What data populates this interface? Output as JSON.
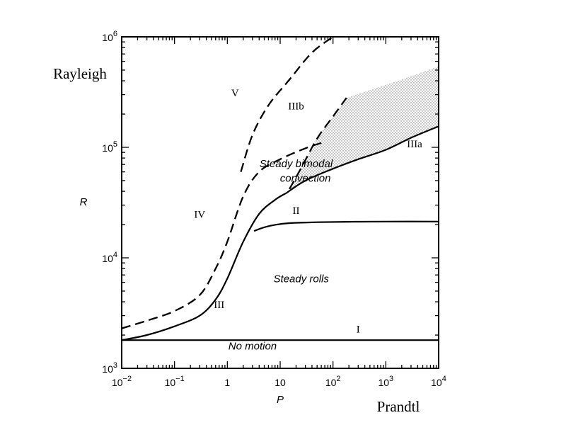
{
  "chart_data": {
    "type": "line",
    "title": "",
    "xlabel": "P",
    "ylabel": "R",
    "xlabel_word": "Prandtl",
    "ylabel_word": "Rayleigh",
    "xscale": "log",
    "yscale": "log",
    "xlim": [
      0.01,
      10000
    ],
    "ylim": [
      1000,
      1000000
    ],
    "grid": false,
    "x_ticks": [
      0.01,
      0.1,
      1,
      10,
      100,
      1000,
      10000
    ],
    "x_tick_labels": [
      {
        "base": "10",
        "exp": "−2"
      },
      {
        "base": "10",
        "exp": "−1"
      },
      {
        "base": "1",
        "exp": ""
      },
      {
        "base": "10",
        "exp": ""
      },
      {
        "base": "10",
        "exp": "2"
      },
      {
        "base": "10",
        "exp": "3"
      },
      {
        "base": "10",
        "exp": "4"
      }
    ],
    "y_ticks": [
      1000,
      10000,
      100000,
      1000000
    ],
    "y_tick_labels": [
      {
        "base": "10",
        "exp": "3"
      },
      {
        "base": "10",
        "exp": "4"
      },
      {
        "base": "10",
        "exp": "5"
      },
      {
        "base": "10",
        "exp": "6"
      }
    ],
    "series": [
      {
        "name": "I",
        "style": "solid",
        "x": [
          0.01,
          10000
        ],
        "y": [
          1800,
          1800
        ]
      },
      {
        "name": "II",
        "style": "solid",
        "x": [
          3.2,
          5,
          8,
          15,
          50,
          200,
          1000,
          10000
        ],
        "y": [
          17500,
          18900,
          19900,
          20600,
          21000,
          21200,
          21300,
          21300
        ]
      },
      {
        "name": "III",
        "style": "solid",
        "x": [
          0.01,
          0.03,
          0.1,
          0.3,
          0.6,
          1,
          2,
          4,
          8,
          13
        ],
        "y": [
          1800,
          2000,
          2400,
          3000,
          4200,
          6500,
          14000,
          25000,
          33500,
          38500
        ]
      },
      {
        "name": "IIIa",
        "style": "solid",
        "x": [
          13,
          30,
          100,
          300,
          1000,
          3000,
          10000
        ],
        "y": [
          38500,
          50000,
          64000,
          78000,
          95000,
          122000,
          155000
        ]
      },
      {
        "name": "IV",
        "style": "dashed",
        "x": [
          0.01,
          0.03,
          0.1,
          0.3,
          0.6,
          1,
          2,
          4,
          10,
          30,
          70
        ],
        "y": [
          2300,
          2700,
          3300,
          4600,
          8000,
          14000,
          36000,
          60000,
          78000,
          98000,
          112000
        ]
      },
      {
        "name": "IIIb",
        "style": "dashed",
        "x": [
          15,
          25,
          50,
          100,
          180
        ],
        "y": [
          42000,
          65000,
          120000,
          190000,
          280000
        ]
      },
      {
        "name": "V",
        "style": "dashed",
        "x": [
          1.8,
          3,
          6,
          15,
          40,
          100
        ],
        "y": [
          60000,
          130000,
          240000,
          410000,
          720000,
          1000000
        ]
      }
    ],
    "shaded_region": {
      "label": "Steady bimodal convection",
      "upper": {
        "x": [
          180,
          500,
          2000,
          10000
        ],
        "y": [
          280000,
          330000,
          410000,
          540000
        ]
      }
    },
    "annotations": [
      {
        "text": "I",
        "style": "roman",
        "x": 300,
        "y": 2100
      },
      {
        "text": "II",
        "style": "roman",
        "x": 20,
        "y": 25000
      },
      {
        "text": "III",
        "style": "roman",
        "x": 0.7,
        "y": 3500
      },
      {
        "text": "IIIa",
        "style": "roman",
        "x": 3500,
        "y": 100000
      },
      {
        "text": "IIIb",
        "style": "roman",
        "x": 20,
        "y": 220000
      },
      {
        "text": "IV",
        "style": "roman",
        "x": 0.3,
        "y": 23000
      },
      {
        "text": "V",
        "style": "roman",
        "x": 1.4,
        "y": 290000
      },
      {
        "text": "Steady bimodal",
        "style": "italic",
        "x": 20,
        "y": 66000
      },
      {
        "text": "convection",
        "style": "italic",
        "x": 30,
        "y": 49000
      },
      {
        "text": "Steady rolls",
        "style": "italic",
        "x": 25,
        "y": 6000
      },
      {
        "text": "No motion",
        "style": "italic",
        "x": 3,
        "y": 1480
      }
    ]
  }
}
